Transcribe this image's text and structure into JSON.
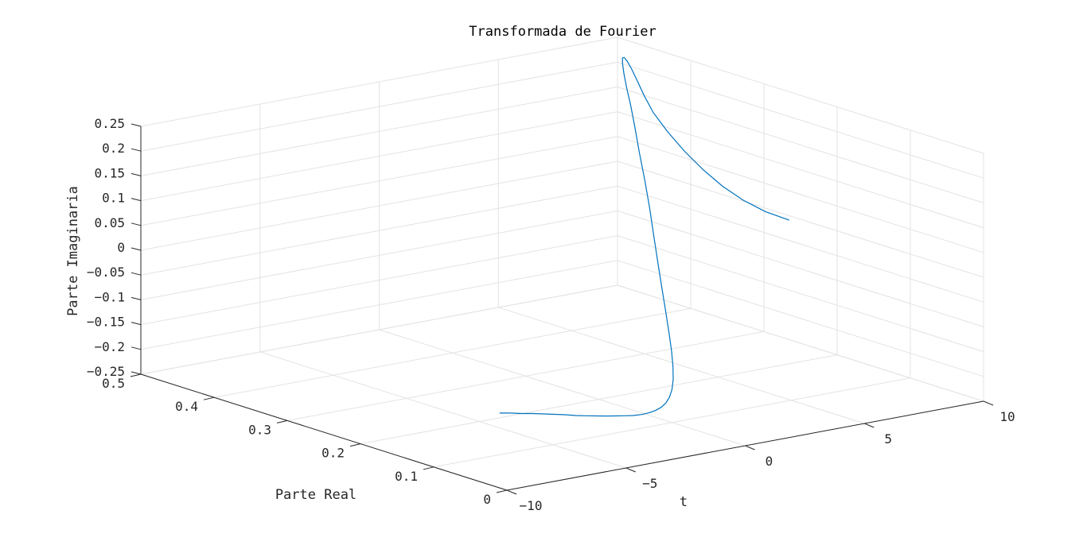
{
  "chart_data": {
    "type": "line3d",
    "title": "Transformada de Fourier",
    "xlabel": "Parte Real",
    "ylabel": "t",
    "zlabel": "Parte Imaginaria",
    "xlim": [
      0,
      0.5
    ],
    "ylim": [
      -10,
      10
    ],
    "zlim": [
      -0.25,
      0.25
    ],
    "xticks": [
      0,
      0.1,
      0.2,
      0.3,
      0.4,
      0.5
    ],
    "xtick_labels": [
      "0",
      "0.1",
      "0.2",
      "0.3",
      "0.4",
      "0.5"
    ],
    "yticks": [
      -10,
      -5,
      0,
      5,
      10
    ],
    "ytick_labels": [
      "-10",
      "-5",
      "0",
      "5",
      "10"
    ],
    "zticks": [
      -0.25,
      -0.2,
      -0.15,
      -0.1,
      -0.05,
      0,
      0.05,
      0.1,
      0.15,
      0.2,
      0.25
    ],
    "ztick_labels": [
      "-0.25",
      "-0.2",
      "-0.15",
      "-0.1",
      "-0.05",
      "0",
      "0.05",
      "0.1",
      "0.15",
      "0.2",
      "0.25"
    ],
    "grid": true,
    "line_color": "#0072BD",
    "series": [
      {
        "x": [
          0.01,
          0.011,
          0.0121,
          0.0133,
          0.0146,
          0.0162,
          0.0179,
          0.0198,
          0.022,
          0.0246,
          0.0275,
          0.0308,
          0.0347,
          0.0392,
          0.0444,
          0.0505,
          0.0576,
          0.066,
          0.0757,
          0.0871,
          0.1,
          0.1147,
          0.1313,
          0.1495,
          0.1692,
          0.19,
          0.2115,
          0.2333,
          0.2552,
          0.2772,
          0.3,
          0.3236,
          0.346,
          0.3679,
          0.39,
          0.41,
          0.4282,
          0.4443,
          0.4583,
          0.4703,
          0.4806,
          0.4893,
          0.4965,
          0.5,
          0.4965,
          0.4893,
          0.4806,
          0.4703,
          0.4583,
          0.4443,
          0.4282
        ],
        "t": [
          -10,
          -9.5,
          -9,
          -8.5,
          -8,
          -7.5,
          -7,
          -6.5,
          -6,
          -5.5,
          -5,
          -4.5,
          -4,
          -3.5,
          -3,
          -2.5,
          -2,
          -1.5,
          -1,
          -0.5,
          0,
          0.5,
          1,
          1.5,
          2,
          2.5,
          3,
          3.5,
          4,
          4.5,
          5,
          5.5,
          6,
          6.5,
          7,
          7.5,
          8,
          8.5,
          9,
          9.5,
          10,
          10.5,
          11,
          11.5,
          12,
          12.5,
          13,
          13.5,
          14,
          14.5,
          15
        ],
        "z": [
          -0.099,
          -0.104,
          -0.11,
          -0.115,
          -0.121,
          -0.127,
          -0.133,
          -0.14,
          -0.146,
          -0.152,
          -0.158,
          -0.164,
          -0.17,
          -0.176,
          -0.181,
          -0.185,
          -0.188,
          -0.19,
          -0.19,
          -0.188,
          -0.183,
          -0.174,
          -0.16,
          -0.142,
          -0.119,
          -0.091,
          -0.058,
          -0.021,
          0.019,
          0.06,
          0.1,
          0.14,
          0.176,
          0.205,
          0.228,
          0.243,
          0.25,
          0.248,
          0.238,
          0.22,
          0.195,
          0.163,
          0.126,
          0.085,
          0.043,
          0.002,
          -0.035,
          -0.068,
          -0.095,
          -0.116,
          -0.13
        ]
      }
    ]
  }
}
